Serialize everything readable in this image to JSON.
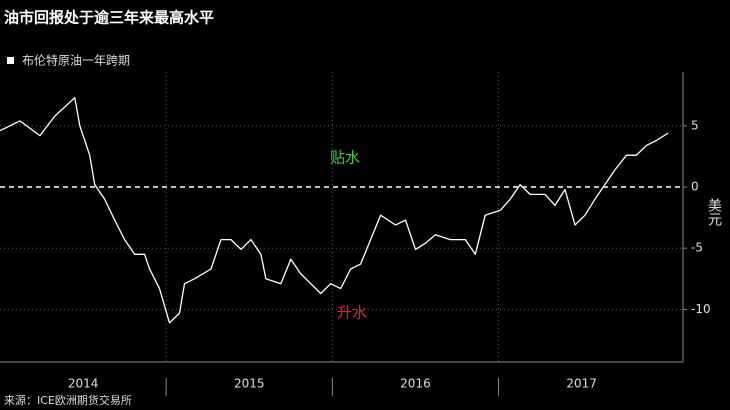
{
  "chart_data": {
    "type": "line",
    "title": "油市回报处于逾三年来最高水平",
    "series": [
      {
        "name": "布伦特原油一年跨期",
        "color": "#ffffff",
        "x": [
          2014.0,
          2014.12,
          2014.24,
          2014.33,
          2014.45,
          2014.48,
          2014.54,
          2014.57,
          2014.63,
          2014.69,
          2014.75,
          2014.81,
          2014.87,
          2014.9,
          2014.96,
          2015.02,
          2015.08,
          2015.11,
          2015.17,
          2015.27,
          2015.33,
          2015.39,
          2015.45,
          2015.51,
          2015.57,
          2015.6,
          2015.69,
          2015.75,
          2015.81,
          2015.87,
          2015.93,
          2015.99,
          2016.05,
          2016.11,
          2016.17,
          2016.23,
          2016.29,
          2016.38,
          2016.44,
          2016.5,
          2016.56,
          2016.62,
          2016.71,
          2016.8,
          2016.86,
          2016.92,
          2017.01,
          2017.07,
          2017.13,
          2017.19,
          2017.28,
          2017.34,
          2017.4,
          2017.46,
          2017.52,
          2017.58,
          2017.64,
          2017.7,
          2017.77,
          2017.83,
          2017.89,
          2017.95,
          2018.02
        ],
        "values": [
          4.6,
          5.4,
          4.2,
          5.8,
          7.3,
          5.0,
          2.6,
          0.2,
          -1.0,
          -2.7,
          -4.3,
          -5.5,
          -5.5,
          -6.7,
          -8.3,
          -11.1,
          -10.3,
          -7.9,
          -7.5,
          -6.7,
          -4.3,
          -4.3,
          -5.1,
          -4.3,
          -5.5,
          -7.5,
          -7.9,
          -5.9,
          -7.1,
          -7.9,
          -8.7,
          -7.9,
          -8.3,
          -6.7,
          -6.3,
          -4.3,
          -2.3,
          -3.1,
          -2.7,
          -5.1,
          -4.6,
          -3.9,
          -4.3,
          -4.3,
          -5.5,
          -2.3,
          -1.9,
          -1.0,
          0.2,
          -0.6,
          -0.6,
          -1.5,
          -0.2,
          -3.1,
          -2.3,
          -1.0,
          0.2,
          1.4,
          2.6,
          2.6,
          3.4,
          3.8,
          4.4
        ]
      }
    ],
    "xlim": [
      2014,
      2018.11
    ],
    "xticks": [
      {
        "value": 2014.5,
        "label": "2014"
      },
      {
        "value": 2015.5,
        "label": "2015"
      },
      {
        "value": 2016.5,
        "label": "2016"
      },
      {
        "value": 2017.5,
        "label": "2017"
      }
    ],
    "xgrid": [
      2015,
      2016,
      2017
    ],
    "ylim": [
      -14.3,
      9.4
    ],
    "yticks": [
      -10,
      -5,
      0,
      5
    ],
    "ylabel": "美元",
    "annotations": [
      {
        "text": "贴水",
        "color": "#3fd13f"
      },
      {
        "text": "升水",
        "color": "#e8201e"
      }
    ],
    "source": "来源：ICE欧洲期货交易所"
  }
}
